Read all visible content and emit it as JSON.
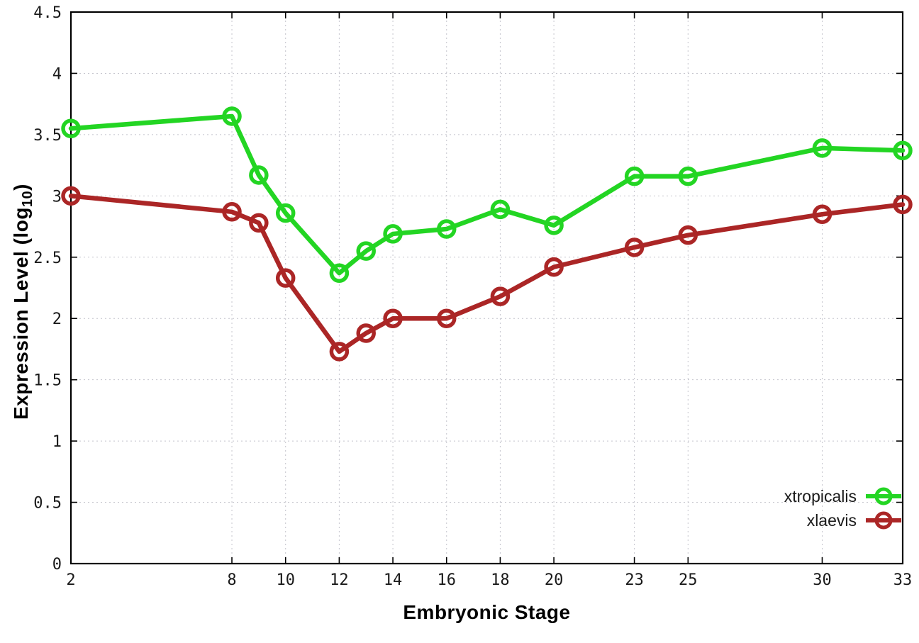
{
  "figure": {
    "background": "#ffffff",
    "border_color": "#000000",
    "grid_color": "#c4c4cc",
    "text_color": "#1a1a1a"
  },
  "chart_data": {
    "type": "line",
    "title": "",
    "xlabel": "Embryonic Stage",
    "ylabel": "Expression Level (log10)",
    "ylabel_pre": "Expression Level (log",
    "ylabel_sub": "10",
    "ylabel_post": ")",
    "xlim": [
      2,
      33
    ],
    "ylim": [
      0,
      4.5
    ],
    "xticks": [
      2,
      8,
      10,
      12,
      14,
      16,
      18,
      20,
      23,
      25,
      30,
      33
    ],
    "yticks": [
      0,
      0.5,
      1,
      1.5,
      2,
      2.5,
      3,
      3.5,
      4,
      4.5
    ],
    "grid": true,
    "legend_position": "bottom-right",
    "x": [
      2,
      8,
      9,
      10,
      12,
      13,
      14,
      16,
      18,
      20,
      23,
      25,
      30,
      33
    ],
    "series": [
      {
        "name": "xtropicalis",
        "color": "#23d523",
        "marker": "open-circle",
        "values": [
          3.55,
          3.65,
          3.17,
          2.86,
          2.37,
          2.55,
          2.69,
          2.73,
          2.89,
          2.76,
          3.16,
          3.16,
          3.39,
          3.37
        ]
      },
      {
        "name": "xlaevis",
        "color": "#ab2626",
        "marker": "open-circle",
        "values": [
          3.0,
          2.87,
          2.78,
          2.33,
          1.73,
          1.88,
          2.0,
          2.0,
          2.18,
          2.42,
          2.58,
          2.68,
          2.85,
          2.93
        ]
      }
    ]
  }
}
